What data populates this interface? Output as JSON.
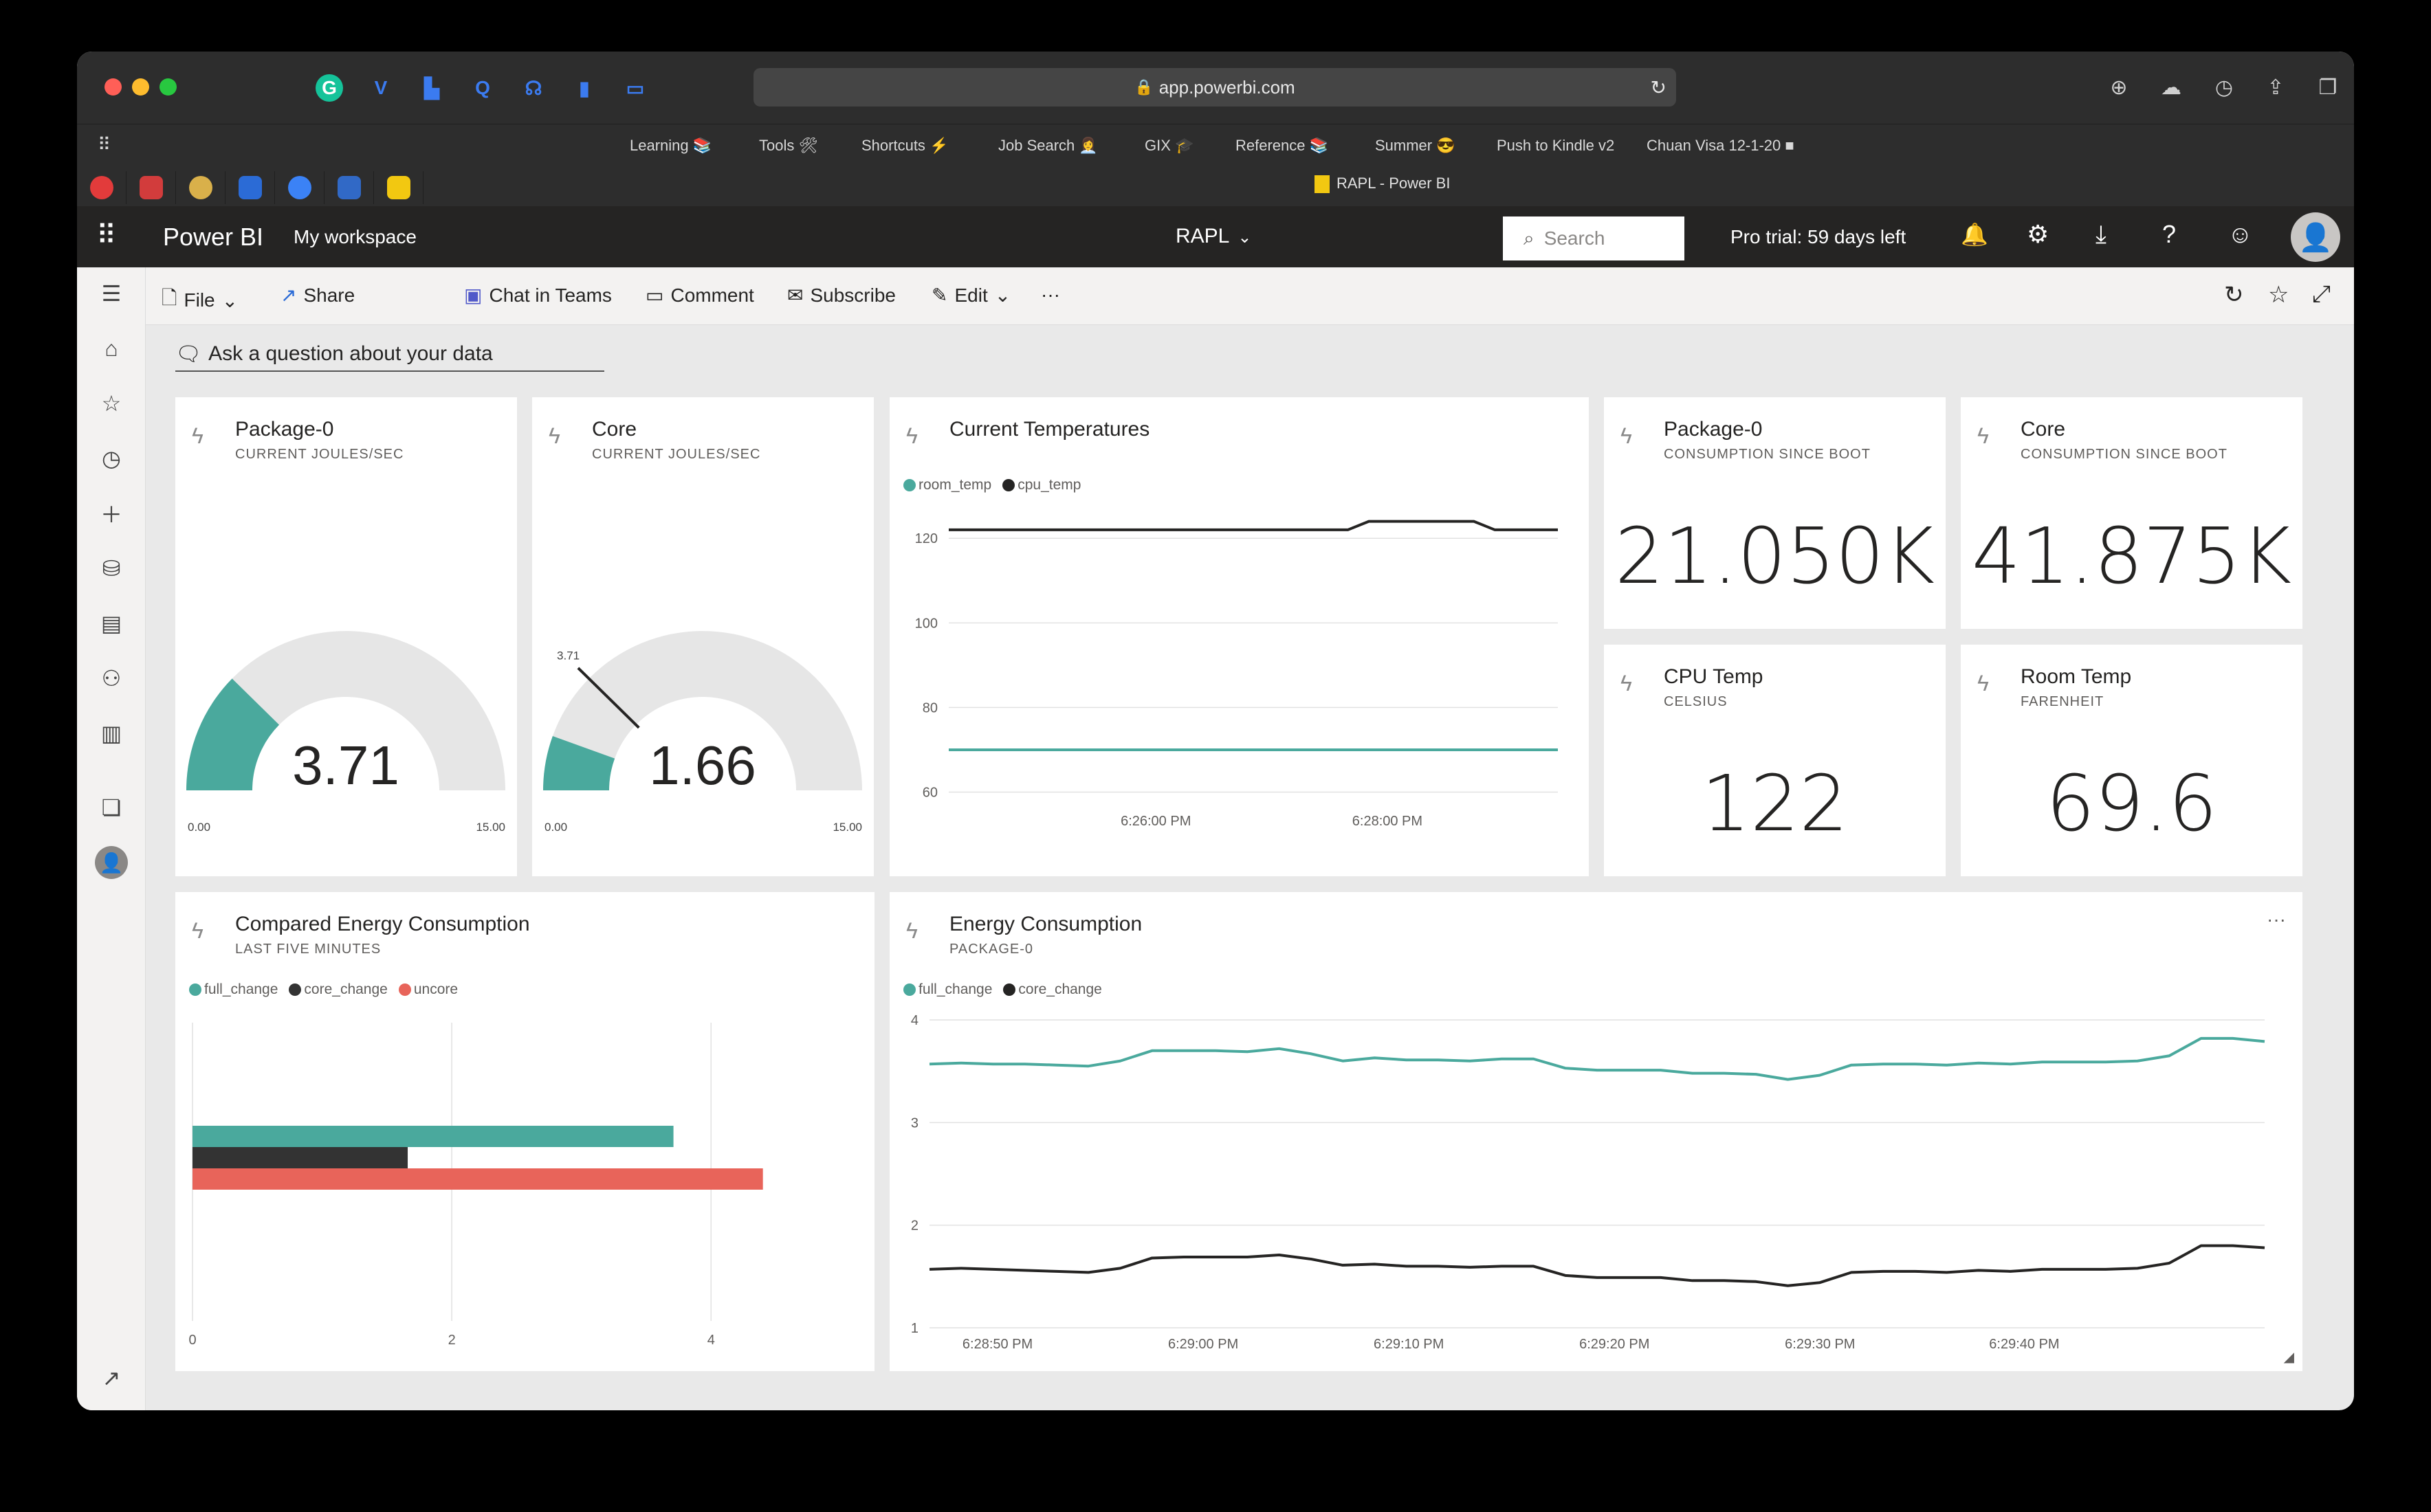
{
  "browser": {
    "url": "app.powerbi.com",
    "bookmarks": [
      "Learning 📚",
      "Tools 🛠",
      "Shortcuts ⚡",
      "Job Search 👩‍💼",
      "GIX 🎓",
      "Reference 📚",
      "Summer 😎",
      "Push to Kindle v2",
      "Chuan Visa 12-1-20 ■"
    ],
    "tab_title": "RAPL - Power BI"
  },
  "powerbi": {
    "brand": "Power BI",
    "workspace": "My workspace",
    "report": "RAPL",
    "search_placeholder": "Search",
    "trial": "Pro trial: 59 days left"
  },
  "toolbar": {
    "file": "File",
    "share": "Share",
    "teams": "Chat in Teams",
    "comment": "Comment",
    "subscribe": "Subscribe",
    "edit": "Edit",
    "more": "···"
  },
  "qa": {
    "label": "Ask a question about your data"
  },
  "tiles": {
    "gauge_pkg": {
      "title": "Package-0",
      "subtitle": "CURRENT JOULES/SEC",
      "value": "3.71",
      "min_label": "0.00",
      "max_label": "15.00"
    },
    "gauge_core": {
      "title": "Core",
      "subtitle": "CURRENT JOULES/SEC",
      "value": "1.66",
      "min_label": "0.00",
      "max_label": "15.00",
      "target_label": "3.71"
    },
    "temps": {
      "title": "Current Temperatures"
    },
    "pkg_boot": {
      "title": "Package-0",
      "subtitle": "CONSUMPTION SINCE BOOT",
      "value": "21.050K"
    },
    "core_boot": {
      "title": "Core",
      "subtitle": "CONSUMPTION SINCE BOOT",
      "value": "41.875K"
    },
    "cpu_temp": {
      "title": "CPU Temp",
      "subtitle": "CELSIUS",
      "value": "122"
    },
    "room_temp": {
      "title": "Room Temp",
      "subtitle": "FARENHEIT",
      "value": "69.6"
    },
    "compared": {
      "title": "Compared Energy Consumption",
      "subtitle": "LAST FIVE MINUTES"
    },
    "energy": {
      "title": "Energy Consumption",
      "subtitle": "PACKAGE-0",
      "more": "···"
    }
  },
  "chart_data": [
    {
      "type": "gauge",
      "title": "Package-0",
      "value": 3.71,
      "min": 0,
      "max": 15,
      "color": "#4aa99d"
    },
    {
      "type": "gauge",
      "title": "Core",
      "value": 1.66,
      "min": 0,
      "max": 15,
      "target": 3.71,
      "color": "#4aa99d"
    },
    {
      "type": "line",
      "title": "Current Temperatures",
      "legend": "top-left",
      "grid": true,
      "x_ticks": [
        "6:26:00 PM",
        "6:28:00 PM"
      ],
      "y_ticks": [
        60,
        80,
        100,
        120
      ],
      "ylim": [
        57,
        128
      ],
      "series": [
        {
          "name": "room_temp",
          "color": "#4aa99d",
          "values": [
            70,
            70,
            70,
            70,
            70,
            70,
            70,
            70,
            70,
            70,
            70,
            70,
            70,
            70,
            70,
            70,
            70,
            70,
            70,
            70,
            70,
            70,
            70,
            70,
            70,
            70,
            70,
            70,
            70,
            70
          ]
        },
        {
          "name": "cpu_temp",
          "color": "#252423",
          "values": [
            122,
            122,
            122,
            122,
            122,
            122,
            122,
            122,
            122,
            122,
            122,
            122,
            122,
            122,
            122,
            122,
            122,
            122,
            122,
            122,
            124,
            124,
            124,
            124,
            124,
            124,
            122,
            122,
            122,
            122
          ]
        }
      ]
    },
    {
      "type": "bar",
      "orientation": "horizontal",
      "title": "Compared Energy Consumption",
      "legend": "top-left",
      "grid": true,
      "x_ticks": [
        0,
        2,
        4
      ],
      "xlim": [
        0,
        5
      ],
      "series": [
        {
          "name": "full_change",
          "color": "#4aa99d",
          "value": 3.71
        },
        {
          "name": "core_change",
          "color": "#333333",
          "value": 1.66
        },
        {
          "name": "uncore",
          "color": "#e8645a",
          "value": 4.4
        }
      ]
    },
    {
      "type": "line",
      "title": "Energy Consumption",
      "legend": "top-left",
      "grid": true,
      "x_ticks": [
        "6:28:50 PM",
        "6:29:00 PM",
        "6:29:10 PM",
        "6:29:20 PM",
        "6:29:30 PM",
        "6:29:40 PM"
      ],
      "y_ticks": [
        1,
        2,
        3,
        4
      ],
      "ylim": [
        1,
        4
      ],
      "series": [
        {
          "name": "full_change",
          "color": "#4aa99d",
          "values": [
            3.57,
            3.58,
            3.57,
            3.57,
            3.56,
            3.55,
            3.6,
            3.7,
            3.7,
            3.7,
            3.69,
            3.72,
            3.67,
            3.6,
            3.63,
            3.61,
            3.61,
            3.6,
            3.62,
            3.62,
            3.53,
            3.51,
            3.51,
            3.51,
            3.48,
            3.48,
            3.47,
            3.42,
            3.46,
            3.56,
            3.57,
            3.57,
            3.56,
            3.58,
            3.57,
            3.59,
            3.59,
            3.59,
            3.6,
            3.65,
            3.82,
            3.82,
            3.79
          ]
        },
        {
          "name": "core_change",
          "color": "#252423",
          "values": [
            1.57,
            1.58,
            1.57,
            1.56,
            1.55,
            1.54,
            1.58,
            1.68,
            1.69,
            1.69,
            1.69,
            1.71,
            1.67,
            1.61,
            1.62,
            1.6,
            1.6,
            1.59,
            1.6,
            1.6,
            1.51,
            1.49,
            1.49,
            1.49,
            1.46,
            1.46,
            1.45,
            1.41,
            1.44,
            1.54,
            1.55,
            1.55,
            1.54,
            1.56,
            1.55,
            1.57,
            1.57,
            1.57,
            1.58,
            1.63,
            1.8,
            1.8,
            1.78
          ]
        }
      ]
    }
  ]
}
